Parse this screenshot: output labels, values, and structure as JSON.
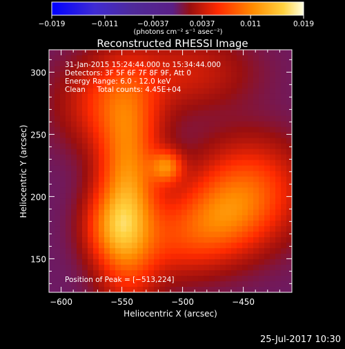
{
  "chart_data": {
    "type": "heatmap",
    "title": "Reconstructed RHESSI Image",
    "xlabel": "Heliocentric X (arcsec)",
    "ylabel": "Heliocentric Y (arcsec)",
    "xlim": [
      -610,
      -410
    ],
    "ylim": [
      123,
      318
    ],
    "x_ticks": [
      -600,
      -550,
      -500,
      -450
    ],
    "x_tick_labels": [
      "−600",
      "−550",
      "−500",
      "−450"
    ],
    "y_ticks": [
      150,
      200,
      250,
      300
    ],
    "y_tick_labels": [
      "150",
      "200",
      "250",
      "300"
    ],
    "colorbar": {
      "range": [
        -0.019,
        0.019
      ],
      "ticks": [
        -0.019,
        -0.011,
        -0.0037,
        0.0037,
        0.011,
        0.019
      ],
      "tick_labels": [
        "−0.019",
        "−0.011",
        "−0.0037",
        "0.0037",
        "0.011",
        "0.019"
      ],
      "unit_label": "(photons cm⁻² s⁻¹ asec⁻²)",
      "colors": [
        "#0000ff",
        "#3f2bd4",
        "#4f2a9a",
        "#5a1f86",
        "#9a0f0f",
        "#ff2a00",
        "#ff8c00",
        "#ffd23f",
        "#ffffe0"
      ]
    },
    "annotations": [
      "31-Jan-2015 15:24:44.000 to 15:34:44.000",
      "Detectors: 3F 5F 6F 7F 8F 9F, Att 0",
      "Energy Range: 6.0 - 12.0 keV",
      "Clean     Total counts: 4.45E+04"
    ],
    "peak_label": "Position of Peak = [−513,224]",
    "peak": {
      "x": -513,
      "y": 224
    },
    "field": {
      "background": 0.0,
      "sources": [
        {
          "x": -545,
          "y": 200,
          "sx": 17,
          "sy": 55,
          "amp": 0.012
        },
        {
          "x": -560,
          "y": 175,
          "sx": 16,
          "sy": 20,
          "amp": 0.006
        },
        {
          "x": -505,
          "y": 165,
          "sx": 28,
          "sy": 22,
          "amp": 0.005
        },
        {
          "x": -445,
          "y": 205,
          "sx": 30,
          "sy": 28,
          "amp": 0.008
        },
        {
          "x": -470,
          "y": 182,
          "sx": 25,
          "sy": 22,
          "amp": 0.006
        },
        {
          "x": -560,
          "y": 275,
          "sx": 28,
          "sy": 25,
          "amp": 0.006
        },
        {
          "x": -495,
          "y": 300,
          "sx": 35,
          "sy": 20,
          "amp": 0.004
        },
        {
          "x": -513,
          "y": 224,
          "sx": 9,
          "sy": 9,
          "amp": 0.009
        }
      ]
    }
  },
  "footer": {
    "timestamp": "25-Jul-2017 10:30"
  }
}
